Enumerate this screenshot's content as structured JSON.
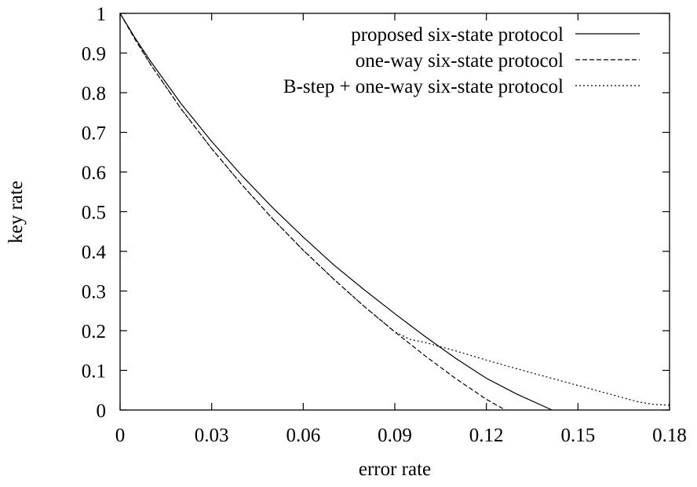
{
  "chart_data": {
    "type": "line",
    "xlabel": "error rate",
    "ylabel": "key rate",
    "xlim": [
      0,
      0.18
    ],
    "ylim": [
      0,
      1
    ],
    "xticks": [
      "0",
      "0.03",
      "0.06",
      "0.09",
      "0.12",
      "0.15",
      "0.18"
    ],
    "yticks": [
      "0",
      "0.1",
      "0.2",
      "0.3",
      "0.4",
      "0.5",
      "0.6",
      "0.7",
      "0.8",
      "0.9",
      "1"
    ],
    "xtick_values": [
      0,
      0.03,
      0.06,
      0.09,
      0.12,
      0.15,
      0.18
    ],
    "ytick_values": [
      0,
      0.1,
      0.2,
      0.3,
      0.4,
      0.5,
      0.6,
      0.7,
      0.8,
      0.9,
      1
    ],
    "grid": false,
    "legend_position": "top-right",
    "series": [
      {
        "name": "proposed six-state protocol",
        "line_style": "solid",
        "x": [
          0,
          0.005,
          0.01,
          0.02,
          0.03,
          0.04,
          0.05,
          0.06,
          0.07,
          0.08,
          0.09,
          0.1,
          0.11,
          0.12,
          0.13,
          0.1415
        ],
        "y": [
          1.0,
          0.937,
          0.879,
          0.772,
          0.677,
          0.59,
          0.51,
          0.436,
          0.366,
          0.303,
          0.243,
          0.185,
          0.13,
          0.08,
          0.04,
          0.0
        ]
      },
      {
        "name": "one-way six-state protocol",
        "line_style": "dashed",
        "x": [
          0,
          0.005,
          0.01,
          0.02,
          0.03,
          0.04,
          0.05,
          0.06,
          0.07,
          0.08,
          0.09,
          0.1,
          0.11,
          0.12,
          0.1262
        ],
        "y": [
          1.0,
          0.933,
          0.871,
          0.759,
          0.659,
          0.567,
          0.482,
          0.403,
          0.33,
          0.261,
          0.197,
          0.136,
          0.079,
          0.027,
          0.0
        ]
      },
      {
        "name": "B-step + one-way six-state protocol",
        "line_style": "dotted",
        "x": [
          0,
          0.01,
          0.02,
          0.03,
          0.04,
          0.05,
          0.06,
          0.07,
          0.08,
          0.09,
          0.095,
          0.1,
          0.11,
          0.12,
          0.13,
          0.14,
          0.15,
          0.16,
          0.17,
          0.175,
          0.18
        ],
        "y": [
          1.0,
          0.871,
          0.759,
          0.659,
          0.567,
          0.482,
          0.403,
          0.33,
          0.261,
          0.197,
          0.178,
          0.17,
          0.149,
          0.126,
          0.104,
          0.083,
          0.062,
          0.041,
          0.02,
          0.014,
          0.012
        ]
      }
    ]
  }
}
